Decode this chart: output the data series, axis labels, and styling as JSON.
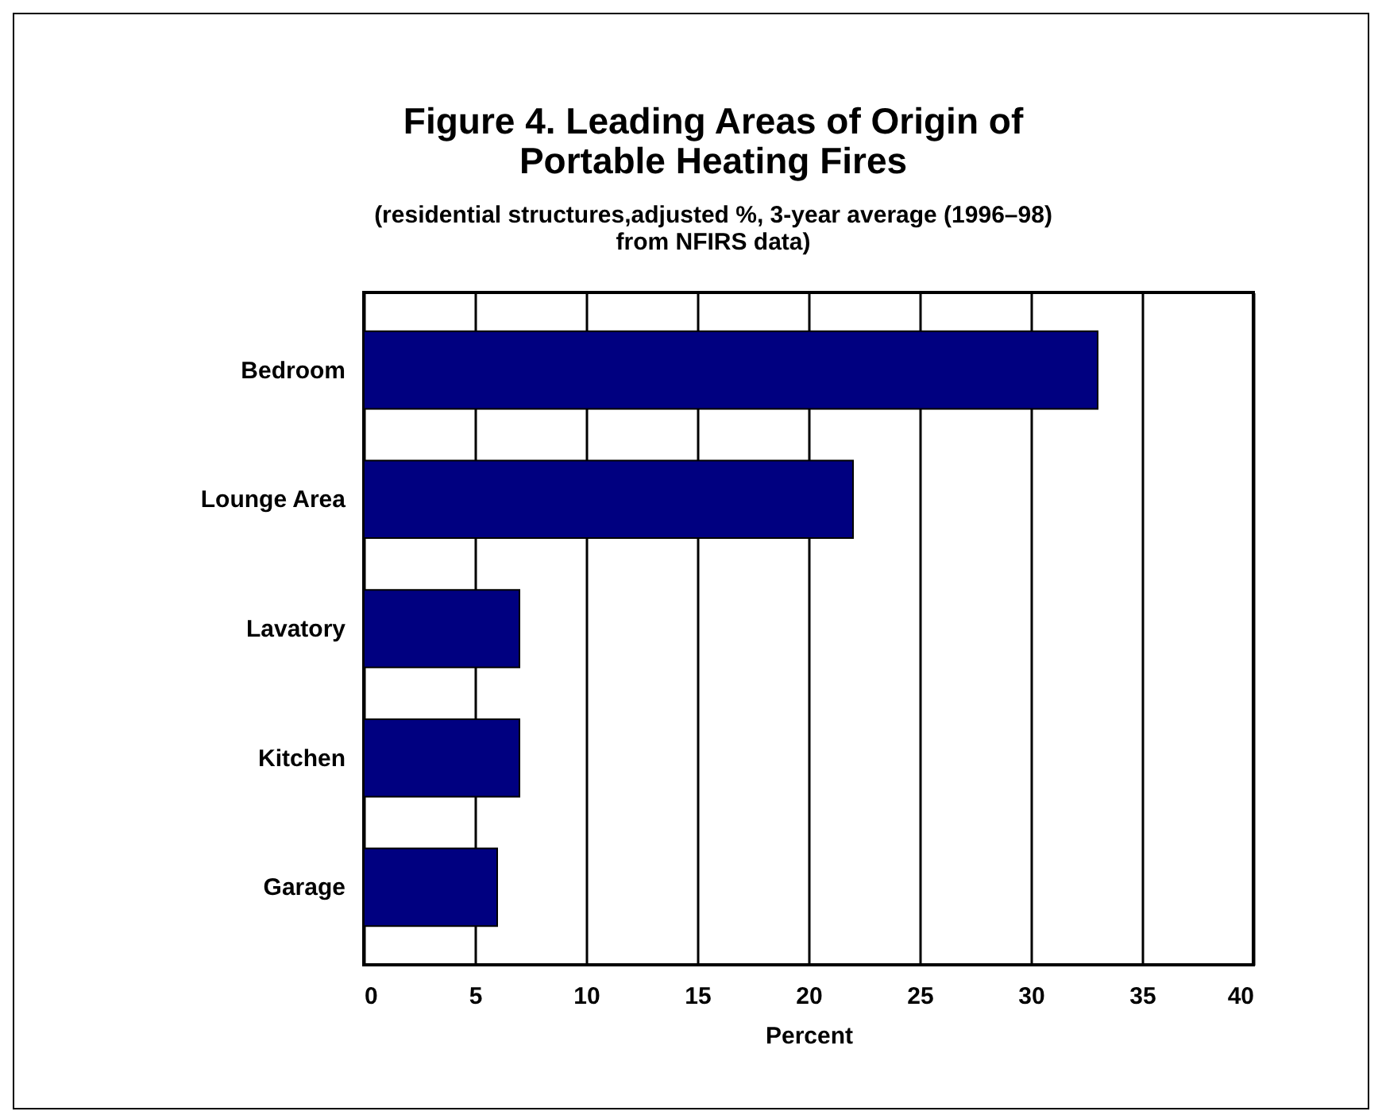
{
  "chart_data": {
    "type": "bar",
    "orientation": "horizontal",
    "title": [
      "Figure 4.  Leading Areas of Origin of",
      "Portable Heating Fires"
    ],
    "subtitle": [
      "(residential structures,adjusted %, 3-year average (1996–98)",
      "from NFIRS data)"
    ],
    "xlabel": "Percent",
    "categories": [
      "Bedroom",
      "Lounge Area",
      "Lavatory",
      "Kitchen",
      "Garage"
    ],
    "values": [
      33,
      22,
      7,
      7,
      6
    ],
    "color": "#000080",
    "xlim": [
      0,
      40
    ],
    "xticks": [
      0,
      5,
      10,
      15,
      20,
      25,
      30,
      35,
      40
    ],
    "grid": "x"
  }
}
